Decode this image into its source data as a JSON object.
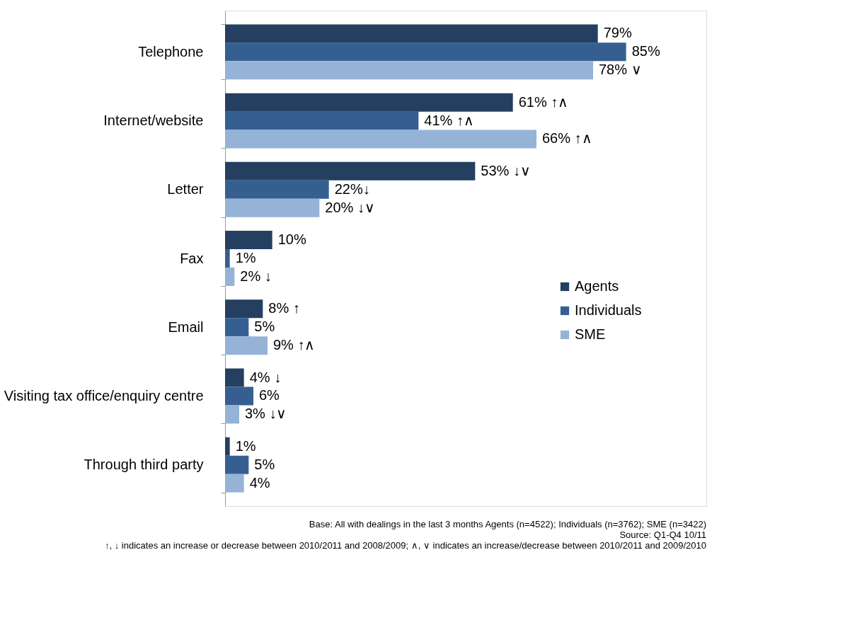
{
  "chart_data": {
    "type": "bar",
    "orientation": "horizontal",
    "categories": [
      "Telephone",
      "Internet/website",
      "Letter",
      "Fax",
      "Email",
      "Visiting tax office/enquiry centre",
      "Through third party"
    ],
    "series": [
      {
        "name": "Agents",
        "color": "#243f60",
        "values": [
          79,
          61,
          53,
          10,
          8,
          4,
          1
        ],
        "value_labels": [
          "79%",
          "61% ↑∧",
          "53% ↓∨",
          "10%",
          "8% ↑",
          "4% ↓",
          "1%"
        ]
      },
      {
        "name": "Individuals",
        "color": "#365f91",
        "values": [
          85,
          41,
          22,
          1,
          5,
          6,
          5
        ],
        "value_labels": [
          "85%",
          "41% ↑∧",
          "22%↓",
          "1%",
          "5%",
          "6%",
          "5%"
        ]
      },
      {
        "name": "SME",
        "color": "#95b3d7",
        "values": [
          78,
          66,
          20,
          2,
          9,
          3,
          4
        ],
        "value_labels": [
          "78% ∨",
          "66% ↑∧",
          "20% ↓∨",
          "2% ↓",
          "9% ↑∧",
          "3% ↓∨",
          "4%"
        ]
      }
    ],
    "legend": "right",
    "annotations": [
      "Base: All with dealings in the last 3 months Agents (n=4522); Individuals (n=3762); SME (n=3422)",
      "Source: Q1-Q4 10/11",
      "↑, ↓ indicates an increase or decrease between 2010/2011 and 2008/2009;  ∧, ∨ indicates an increase/decrease between 2010/2011 and 2009/2010"
    ]
  }
}
